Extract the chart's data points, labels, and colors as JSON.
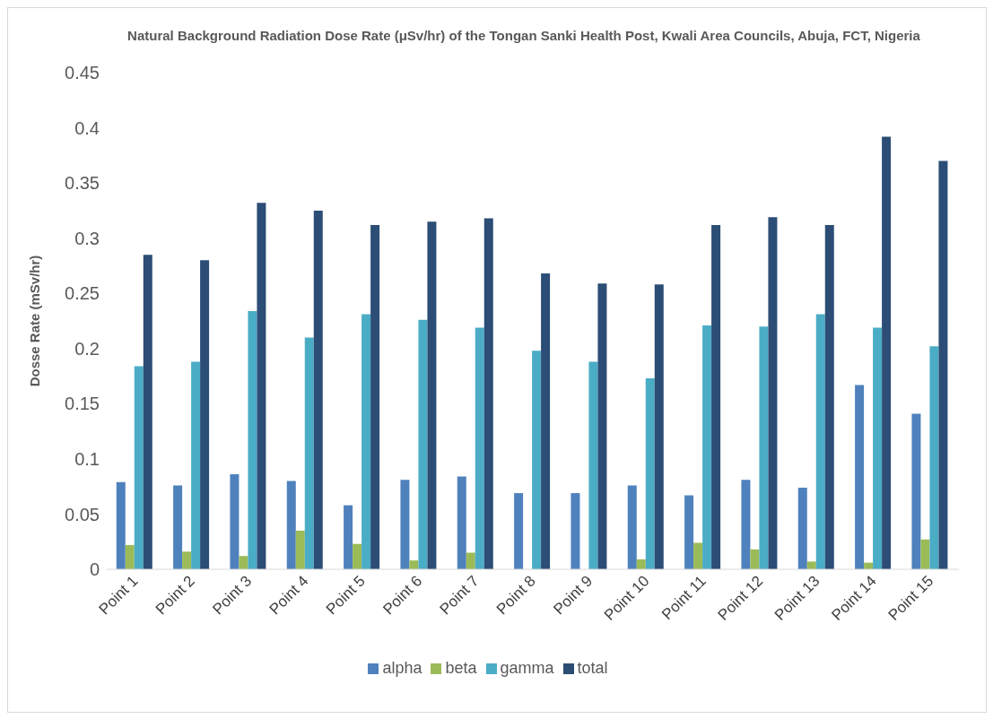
{
  "chart_data": {
    "type": "bar",
    "title": "Natural Background Radiation Dose Rate (μSv/hr)  of the Tongan Sanki Health Post, Kwali Area Councils, Abuja, FCT, Nigeria",
    "ylabel": "Dosse Rate  (mSv/hr)",
    "categories": [
      "Point 1",
      "Point 2",
      "Point 3",
      "Point 4",
      "Point 5",
      "Point 6",
      "Point 7",
      "Point 8",
      "Point 9",
      "Point 10",
      "Point 11",
      "Point 12",
      "Point 13",
      "Point 14",
      "Point 15"
    ],
    "series": [
      {
        "name": "alpha",
        "color": "#4f81bd",
        "values": [
          0.079,
          0.076,
          0.086,
          0.08,
          0.058,
          0.081,
          0.084,
          0.069,
          0.069,
          0.076,
          0.067,
          0.081,
          0.074,
          0.167,
          0.141
        ]
      },
      {
        "name": "beta",
        "color": "#9bbb59",
        "values": [
          0.022,
          0.016,
          0.012,
          0.035,
          0.023,
          0.008,
          0.015,
          0,
          null,
          0.009,
          0.024,
          0.018,
          0.007,
          0.006,
          0.027
        ]
      },
      {
        "name": "gamma",
        "color": "#4bacc6",
        "values": [
          0.184,
          0.188,
          0.234,
          0.21,
          0.231,
          0.226,
          0.219,
          0.198,
          0.188,
          0.173,
          0.221,
          0.22,
          0.231,
          0.219,
          0.202
        ]
      },
      {
        "name": "total",
        "color": "#2c4d75",
        "values": [
          0.285,
          0.28,
          0.332,
          0.325,
          0.312,
          0.315,
          0.318,
          0.268,
          0.259,
          0.258,
          0.312,
          0.319,
          0.312,
          0.392,
          0.37
        ]
      }
    ],
    "ylim": [
      0,
      0.45
    ],
    "yticks": [
      0,
      0.05,
      0.1,
      0.15,
      0.2,
      0.25,
      0.3,
      0.35,
      0.4,
      0.45
    ],
    "grid": false,
    "legend": "bottom"
  }
}
